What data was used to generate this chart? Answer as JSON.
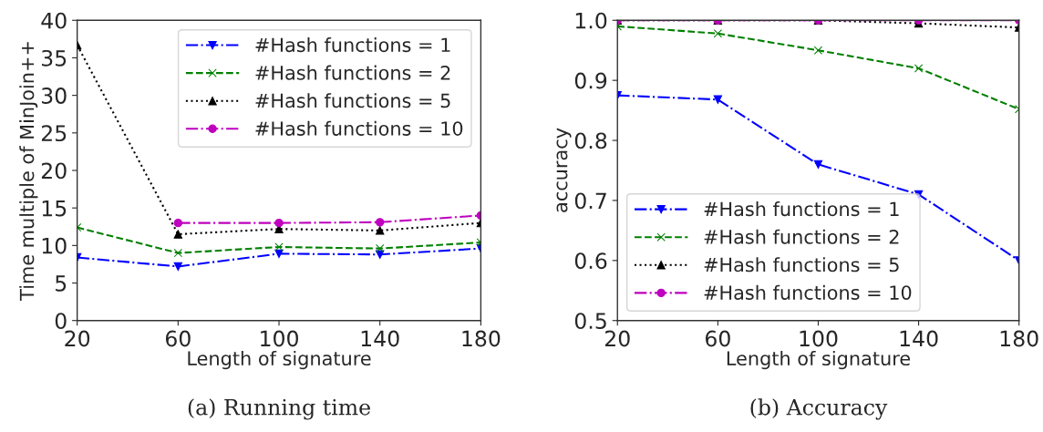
{
  "chart_data": [
    {
      "type": "line",
      "xlabel": "Length of signature",
      "ylabel": "Time multiple of MinJoin++",
      "x": [
        20,
        60,
        100,
        140,
        180
      ],
      "xlim": [
        20,
        180
      ],
      "xticks": [
        20,
        60,
        100,
        140,
        180
      ],
      "ylim": [
        0,
        40
      ],
      "yticks": [
        0,
        5,
        10,
        15,
        20,
        25,
        30,
        35,
        40
      ],
      "grid": false,
      "legend": "top right",
      "annotations": [
        "(a) Running time"
      ],
      "series": [
        {
          "name": "#Hash functions = 1",
          "color": "#0000ff",
          "marker": "triangle_down",
          "line_style": "dashdot",
          "values": [
            8.4,
            7.2,
            8.9,
            8.8,
            9.6
          ]
        },
        {
          "name": "#Hash functions = 2",
          "color": "#008000",
          "marker": "cross",
          "line_style": "dashed",
          "values": [
            12.4,
            9.0,
            9.8,
            9.6,
            10.4
          ]
        },
        {
          "name": "#Hash functions = 5",
          "color": "#000000",
          "marker": "triangle",
          "line_style": "dotted",
          "values": [
            36.7,
            11.5,
            12.2,
            12.0,
            13.0
          ]
        },
        {
          "name": "#Hash functions = 10",
          "color": "#bf00bf",
          "marker": "circle",
          "line_style": "dashdot",
          "values": [
            null,
            13.0,
            13.0,
            13.1,
            14.0
          ]
        }
      ]
    },
    {
      "type": "line",
      "xlabel": "Length of signature",
      "ylabel": "accuracy",
      "x": [
        20,
        60,
        100,
        140,
        180
      ],
      "xlim": [
        20,
        180
      ],
      "xticks": [
        20,
        60,
        100,
        140,
        180
      ],
      "ylim": [
        0.5,
        1.0
      ],
      "yticks": [
        {
          "value": 0.5,
          "label": "0.5"
        },
        {
          "value": 0.6,
          "label": "0.6"
        },
        {
          "value": 0.7,
          "label": "0.7"
        },
        {
          "value": 0.8,
          "label": "0.8"
        },
        {
          "value": 0.9,
          "label": "0.9"
        },
        {
          "value": 1.0,
          "label": "1.0"
        }
      ],
      "grid": false,
      "legend": "bottom left",
      "annotations": [
        "(b) Accuracy"
      ],
      "series": [
        {
          "name": "#Hash functions = 1",
          "color": "#0000ff",
          "marker": "triangle_down",
          "line_style": "dashdot",
          "values": [
            0.875,
            0.868,
            0.76,
            0.71,
            0.6
          ]
        },
        {
          "name": "#Hash functions = 2",
          "color": "#008000",
          "marker": "cross",
          "line_style": "dashed",
          "values": [
            0.99,
            0.978,
            0.95,
            0.92,
            0.852
          ]
        },
        {
          "name": "#Hash functions = 5",
          "color": "#000000",
          "marker": "triangle",
          "line_style": "dotted",
          "values": [
            1.0,
            1.0,
            1.0,
            0.995,
            0.988
          ]
        },
        {
          "name": "#Hash functions = 10",
          "color": "#bf00bf",
          "marker": "circle",
          "line_style": "dashdot",
          "values": [
            1.0,
            1.0,
            1.0,
            1.0,
            1.0
          ]
        }
      ]
    }
  ]
}
